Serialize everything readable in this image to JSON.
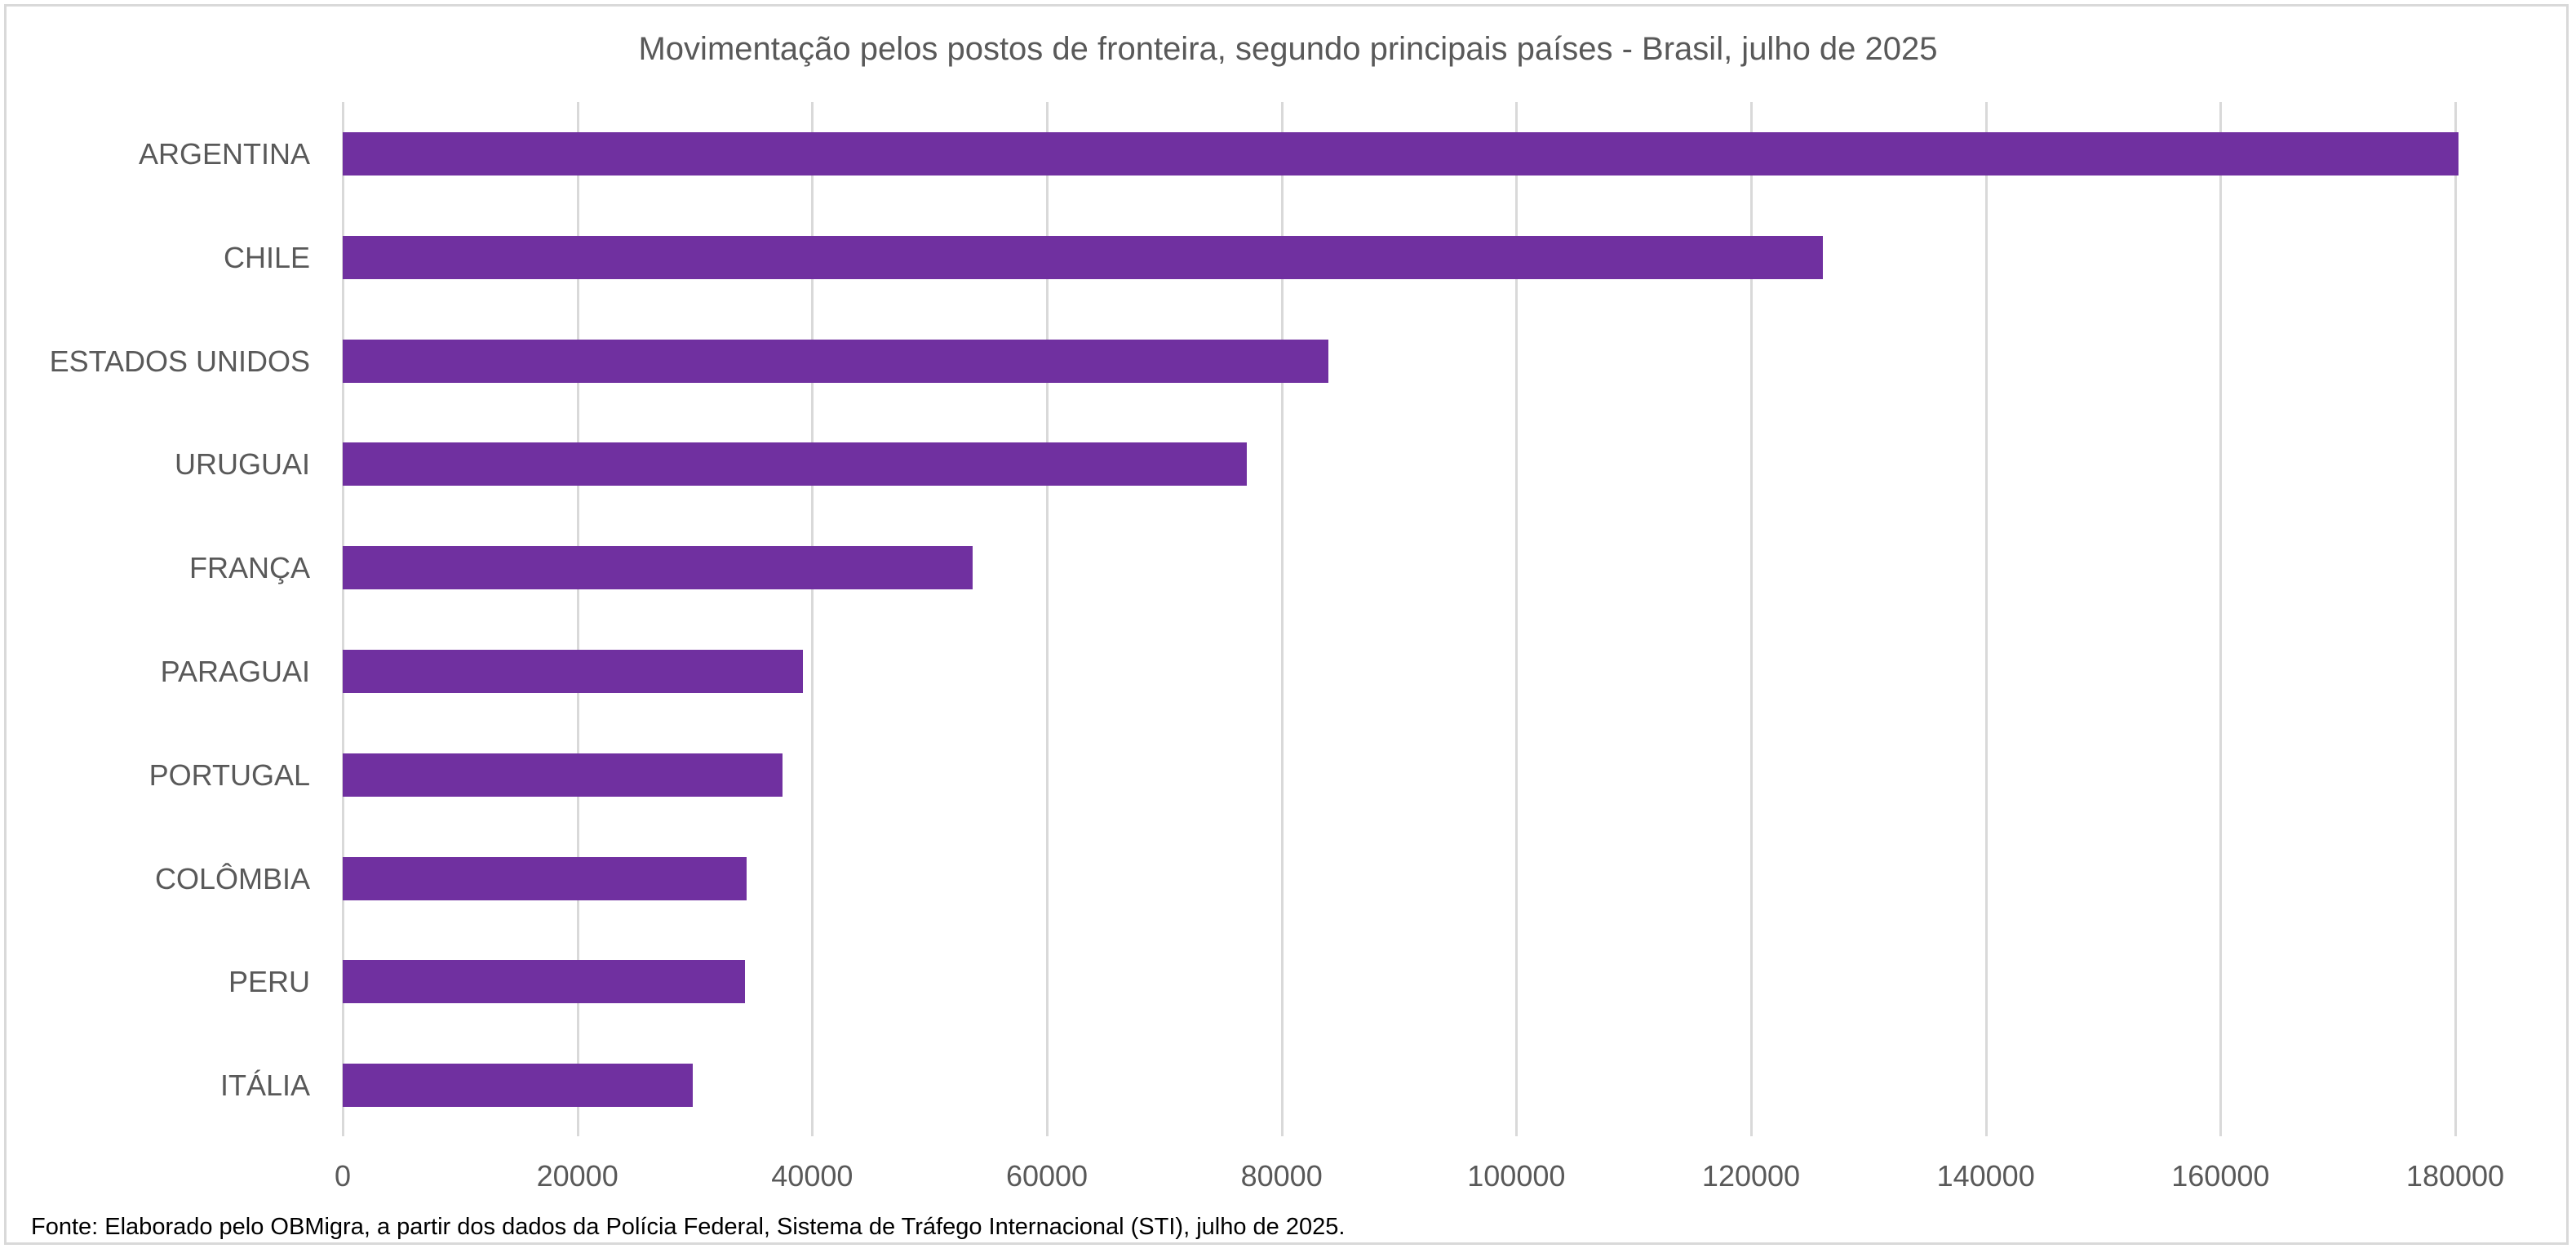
{
  "chart_data": {
    "type": "bar",
    "orientation": "horizontal",
    "title": "Movimentação pelos postos de fronteira, segundo principais países - Brasil, julho de 2025",
    "xlabel": "",
    "ylabel": "",
    "categories": [
      "ARGENTINA",
      "CHILE",
      "ESTADOS UNIDOS",
      "URUGUAI",
      "FRANÇA",
      "PARAGUAI",
      "PORTUGAL",
      "COLÔMBIA",
      "PERU",
      "ITÁLIA"
    ],
    "values": [
      180300,
      126100,
      84000,
      77000,
      53700,
      39200,
      37500,
      34400,
      34300,
      29800
    ],
    "xlim": [
      0,
      180000
    ],
    "x_ticks": [
      "0",
      "20000",
      "40000",
      "60000",
      "80000",
      "100000",
      "120000",
      "140000",
      "160000",
      "180000"
    ],
    "grid": "vertical",
    "legend": "none",
    "bar_color": "#7030A0"
  },
  "footer": {
    "source": "Fonte: Elaborado pelo OBMigra, a partir dos dados da Polícia Federal, Sistema de Tráfego Internacional (STI), julho de 2025."
  },
  "colors": {
    "bar": "#7030A0",
    "grid": "#D9D9D9",
    "text": "#595959",
    "footer_text": "#000000"
  }
}
